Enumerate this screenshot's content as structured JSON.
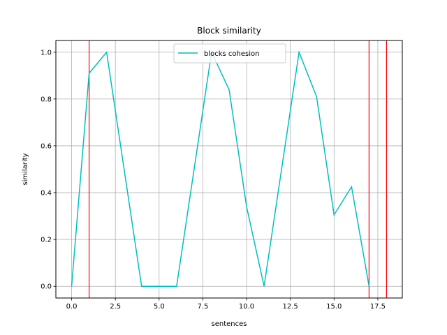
{
  "chart_data": {
    "type": "line",
    "title": "Block similarity",
    "xlabel": "sentences",
    "ylabel": "similarity",
    "xlim": [
      -0.9,
      18.9
    ],
    "ylim": [
      -0.05,
      1.05
    ],
    "xticks": [
      0.0,
      2.5,
      5.0,
      7.5,
      10.0,
      12.5,
      15.0,
      17.5
    ],
    "xtick_labels": [
      "0.0",
      "2.5",
      "5.0",
      "7.5",
      "10.0",
      "12.5",
      "15.0",
      "17.5"
    ],
    "yticks": [
      0.0,
      0.2,
      0.4,
      0.6,
      0.8,
      1.0
    ],
    "ytick_labels": [
      "0.0",
      "0.2",
      "0.4",
      "0.6",
      "0.8",
      "1.0"
    ],
    "grid": true,
    "legend_position": "top-center",
    "series": [
      {
        "name": "blocks cohesion",
        "color": "#00bfbf",
        "x": [
          0,
          1,
          2,
          3,
          4,
          5,
          6,
          7,
          8,
          9,
          10,
          11,
          12,
          13,
          14,
          15,
          16,
          17
        ],
        "y": [
          0.0,
          0.91,
          1.0,
          0.5,
          0.0,
          0.0,
          0.0,
          0.5,
          1.0,
          0.84,
          0.34,
          0.0,
          0.5,
          1.0,
          0.81,
          0.305,
          0.425,
          0.0
        ]
      }
    ],
    "vlines": {
      "color": "#ff0000",
      "x": [
        1,
        17,
        18
      ]
    }
  }
}
